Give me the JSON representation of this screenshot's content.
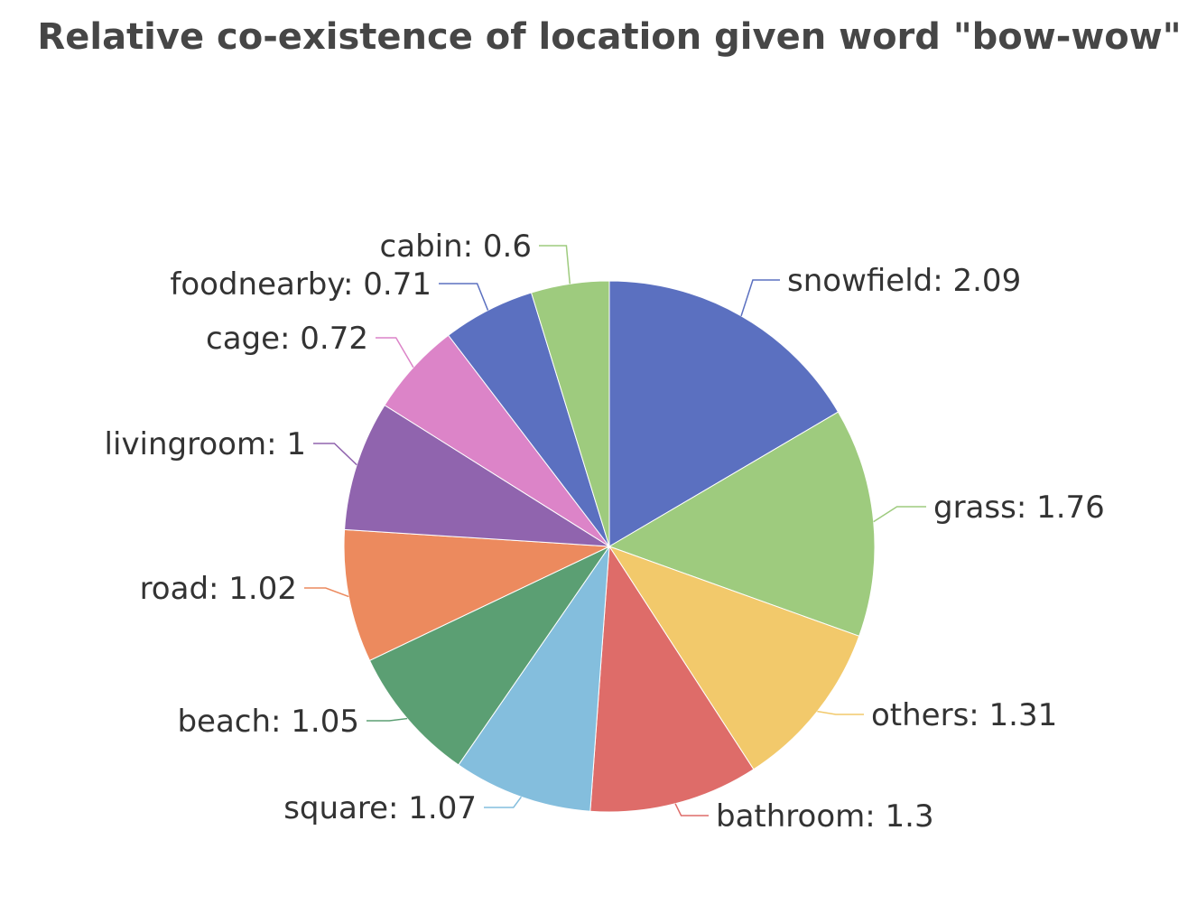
{
  "chart_data": {
    "type": "pie",
    "title": "Relative co-existence of location given word \"bow-wow\"",
    "label_format": "name: value",
    "start": "top",
    "direction": "clockwise",
    "slices": [
      {
        "name": "snowfield",
        "value": 2.09,
        "label": "snowfield: 2.09",
        "color": "#5b70c0"
      },
      {
        "name": "grass",
        "value": 1.76,
        "label": "grass: 1.76",
        "color": "#9ecb7e"
      },
      {
        "name": "others",
        "value": 1.31,
        "label": "others: 1.31",
        "color": "#f2c96b"
      },
      {
        "name": "bathroom",
        "value": 1.3,
        "label": "bathroom: 1.3",
        "color": "#de6c69"
      },
      {
        "name": "square",
        "value": 1.07,
        "label": "square: 1.07",
        "color": "#84bedd"
      },
      {
        "name": "beach",
        "value": 1.05,
        "label": "beach: 1.05",
        "color": "#5b9f73"
      },
      {
        "name": "road",
        "value": 1.02,
        "label": "road: 1.02",
        "color": "#ec8a5e"
      },
      {
        "name": "livingroom",
        "value": 1,
        "label": "livingroom: 1",
        "color": "#9064ae"
      },
      {
        "name": "cage",
        "value": 0.72,
        "label": "cage: 0.72",
        "color": "#dc84c8"
      },
      {
        "name": "foodnearby",
        "value": 0.71,
        "label": "foodnearby: 0.71",
        "color": "#5b70c0"
      },
      {
        "name": "cabin",
        "value": 0.6,
        "label": "cabin: 0.6",
        "color": "#9ecb7e"
      }
    ]
  }
}
